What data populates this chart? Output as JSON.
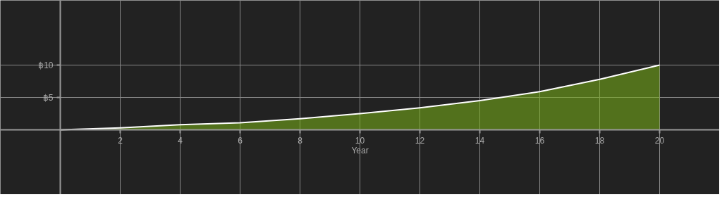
{
  "chart_data": {
    "type": "area",
    "xlabel": "Year",
    "x": [
      0,
      2,
      4,
      6,
      8,
      10,
      12,
      14,
      16,
      18,
      20
    ],
    "series": [
      {
        "color": "#7ab317",
        "values": [
          0,
          0.3,
          0.8,
          1.1,
          1.7,
          2.5,
          3.4,
          4.5,
          5.9,
          7.8,
          10
        ]
      }
    ],
    "xlim": [
      -2,
      22
    ],
    "ylim": [
      -10,
      20
    ],
    "xticks": [
      2,
      4,
      6,
      8,
      10,
      12,
      14,
      16,
      18,
      20
    ],
    "yticks": [
      {
        "value": 5,
        "label": "฿5"
      },
      {
        "value": 10,
        "label": "฿10"
      }
    ],
    "grid": true
  }
}
